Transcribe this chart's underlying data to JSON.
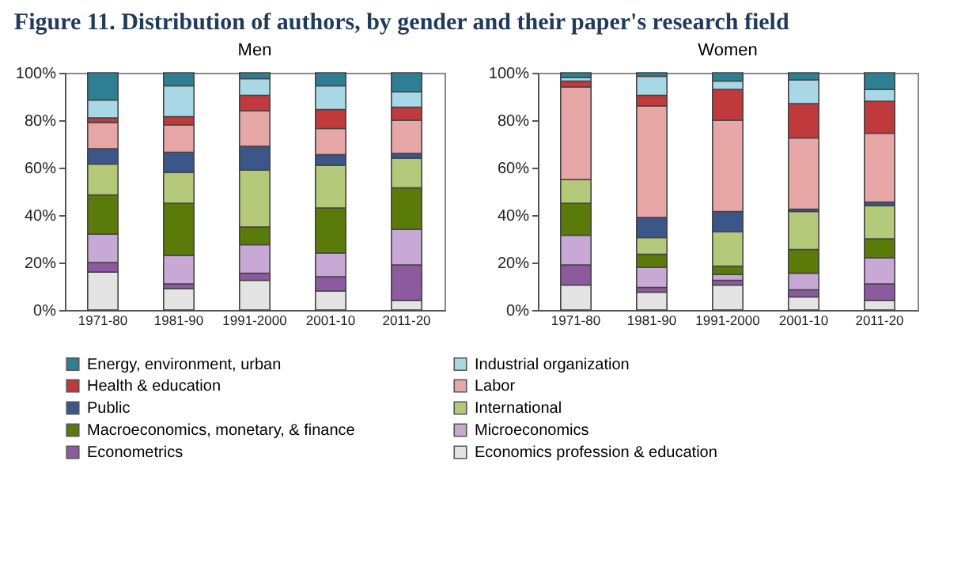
{
  "chart_data": [
    {
      "type": "bar",
      "title": "Men",
      "annotations": [
        "Figure 11. Distribution of authors, by gender and their paper's research field"
      ],
      "stacked": true,
      "legend": "bottom",
      "grid": false,
      "categories": [
        "1971-80",
        "1981-90",
        "1991-2000",
        "2001-10",
        "2011-20"
      ],
      "ylim": [
        0,
        100
      ],
      "yticks": [
        {
          "value": 0,
          "label": "0%"
        },
        {
          "value": 20,
          "label": "20%"
        },
        {
          "value": 40,
          "label": "40%"
        },
        {
          "value": 60,
          "label": "60%"
        },
        {
          "value": 80,
          "label": "80%"
        },
        {
          "value": 100,
          "label": "100%"
        }
      ],
      "series": [
        {
          "name": "Economics profession & education",
          "color": "#e4e4e4",
          "values": [
            16,
            9,
            12.5,
            8,
            4
          ]
        },
        {
          "name": "Econometrics",
          "color": "#8d5aa0",
          "values": [
            4,
            2,
            3,
            6,
            15
          ]
        },
        {
          "name": "Microeconomics",
          "color": "#c8a8d4",
          "values": [
            12,
            12,
            12,
            10,
            15
          ]
        },
        {
          "name": "Macroeconomics, monetary, & finance",
          "color": "#5a7a0a",
          "values": [
            16.5,
            22,
            7.5,
            19,
            17.5
          ]
        },
        {
          "name": "International",
          "color": "#b5c97a",
          "values": [
            13,
            13,
            24,
            18,
            12.5
          ]
        },
        {
          "name": "Public",
          "color": "#3b5688",
          "values": [
            6.5,
            8.5,
            10,
            4.5,
            2
          ]
        },
        {
          "name": "Labor",
          "color": "#e8a7a7",
          "values": [
            11,
            11.5,
            15,
            11,
            14
          ]
        },
        {
          "name": "Health & education",
          "color": "#c0393b",
          "values": [
            2,
            3.5,
            6.5,
            8,
            5.5
          ]
        },
        {
          "name": "Industrial organization",
          "color": "#a8d8e6",
          "values": [
            7.5,
            13,
            7,
            10,
            6.5
          ]
        },
        {
          "name": "Energy, environment, urban",
          "color": "#2e7f93",
          "values": [
            11.5,
            5.5,
            2.5,
            5.5,
            8
          ]
        }
      ]
    },
    {
      "type": "bar",
      "title": "Women",
      "stacked": true,
      "legend": "bottom",
      "grid": false,
      "categories": [
        "1971-80",
        "1981-90",
        "1991-2000",
        "2001-10",
        "2011-20"
      ],
      "ylim": [
        0,
        100
      ],
      "yticks": [
        {
          "value": 0,
          "label": "0%"
        },
        {
          "value": 20,
          "label": "20%"
        },
        {
          "value": 40,
          "label": "40%"
        },
        {
          "value": 60,
          "label": "60%"
        },
        {
          "value": 80,
          "label": "80%"
        },
        {
          "value": 100,
          "label": "100%"
        }
      ],
      "series": [
        {
          "name": "Economics profession & education",
          "color": "#e4e4e4",
          "values": [
            10.5,
            7.5,
            10.5,
            5.5,
            4
          ]
        },
        {
          "name": "Econometrics",
          "color": "#8d5aa0",
          "values": [
            8.5,
            2,
            2,
            3,
            7
          ]
        },
        {
          "name": "Microeconomics",
          "color": "#c8a8d4",
          "values": [
            12.5,
            8.5,
            2.5,
            7,
            11
          ]
        },
        {
          "name": "Macroeconomics, monetary, & finance",
          "color": "#5a7a0a",
          "values": [
            13.5,
            5.5,
            3.5,
            10,
            8
          ]
        },
        {
          "name": "International",
          "color": "#b5c97a",
          "values": [
            10,
            7,
            14.5,
            16,
            14
          ]
        },
        {
          "name": "Public",
          "color": "#3b5688",
          "values": [
            null,
            8.5,
            8.5,
            1,
            1.5
          ]
        },
        {
          "name": "Labor",
          "color": "#e8a7a7",
          "values": [
            39,
            47,
            38.5,
            30,
            29
          ]
        },
        {
          "name": "Health & education",
          "color": "#c0393b",
          "values": [
            2.5,
            4.5,
            13,
            14.5,
            13.5
          ]
        },
        {
          "name": "Industrial organization",
          "color": "#a8d8e6",
          "values": [
            1.5,
            8,
            3.5,
            10,
            5
          ]
        },
        {
          "name": "Energy, environment, urban",
          "color": "#2e7f93",
          "values": [
            2,
            1.5,
            3.5,
            3,
            7
          ]
        }
      ]
    }
  ]
}
